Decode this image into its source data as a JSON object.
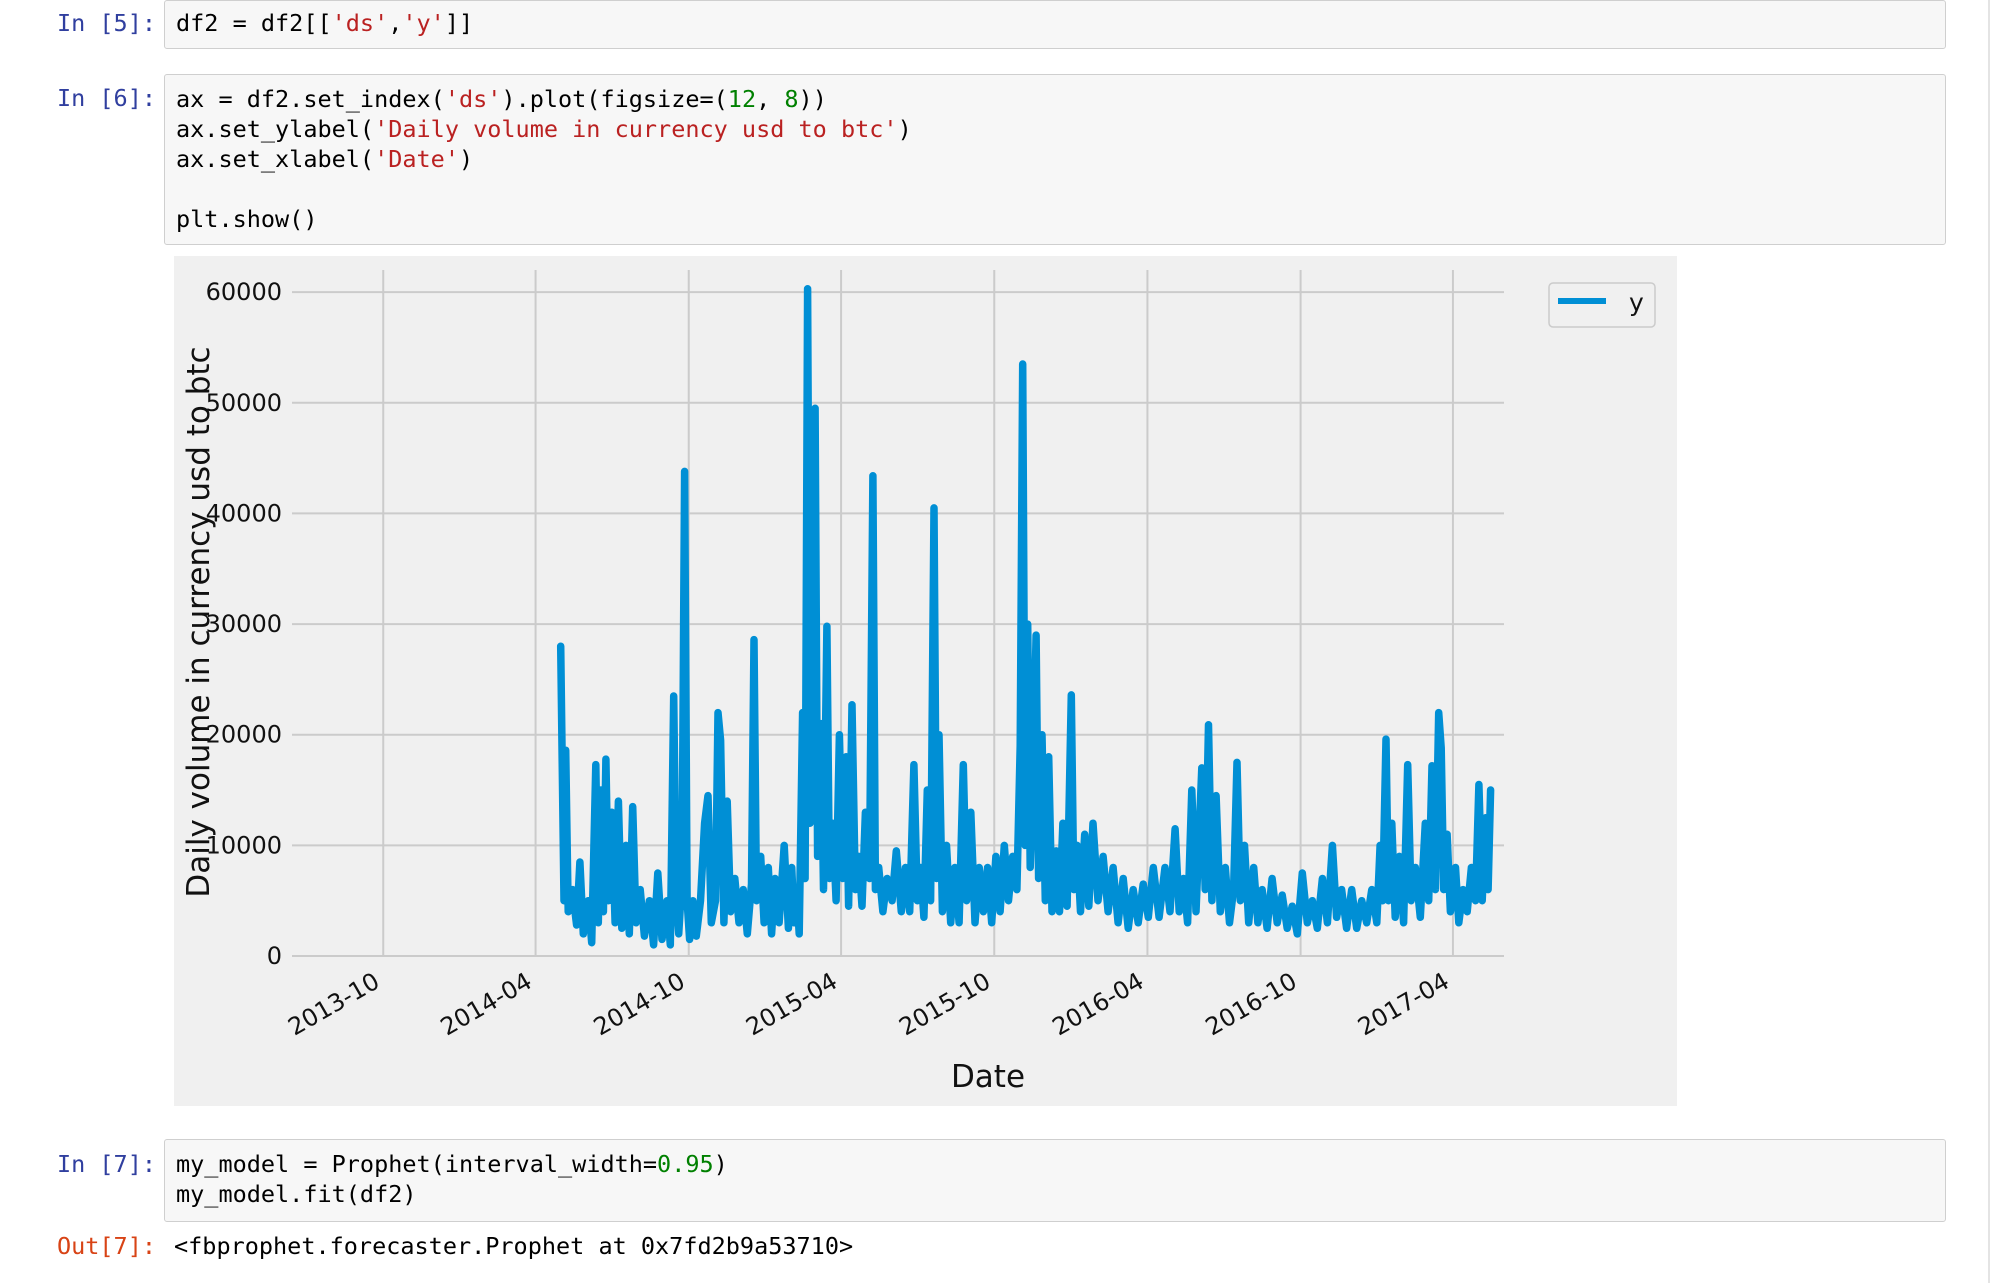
{
  "cells": [
    {
      "prompt": "In [5]:",
      "lines": [
        [
          {
            "t": "df2 = df2[["
          },
          {
            "t": "'ds'",
            "c": "s"
          },
          {
            "t": ","
          },
          {
            "t": "'y'",
            "c": "s"
          },
          {
            "t": "]]"
          }
        ]
      ]
    },
    {
      "prompt": "In [6]:",
      "lines": [
        [
          {
            "t": "ax = df2.set_index("
          },
          {
            "t": "'ds'",
            "c": "s"
          },
          {
            "t": ").plot(figsize=("
          },
          {
            "t": "12",
            "c": "n"
          },
          {
            "t": ", "
          },
          {
            "t": "8",
            "c": "n"
          },
          {
            "t": "))"
          }
        ],
        [
          {
            "t": "ax.set_ylabel("
          },
          {
            "t": "'Daily volume in currency usd to btc'",
            "c": "s"
          },
          {
            "t": ")"
          }
        ],
        [
          {
            "t": "ax.set_xlabel("
          },
          {
            "t": "'Date'",
            "c": "s"
          },
          {
            "t": ")"
          }
        ],
        [],
        [
          {
            "t": "plt.show()"
          }
        ]
      ]
    },
    {
      "prompt": "In [7]:",
      "lines": [
        [
          {
            "t": "my_model = Prophet(interval_width="
          },
          {
            "t": "0.95",
            "c": "n"
          },
          {
            "t": ")"
          }
        ],
        [
          {
            "t": "my_model.fit(df2)"
          }
        ]
      ]
    }
  ],
  "output": {
    "prompt": "Out[7]:",
    "text": "<fbprophet.forecaster.Prophet at 0x7fd2b9a53710>"
  },
  "colors": {
    "line": "#008fd5",
    "grid": "#cbcbcb",
    "plot_bg": "#f0f0f0",
    "string": "#ba2121",
    "number": "#008000",
    "in_prompt": "#303f9f",
    "out_prompt": "#d84315"
  },
  "chart_data": {
    "type": "line",
    "style": "fivethirtyeight",
    "xlabel": "Date",
    "ylabel": "Daily volume in currency usd to btc",
    "legend": [
      "y"
    ],
    "legend_position": "top-right",
    "grid": true,
    "x_ticks": [
      "2013-10",
      "2014-04",
      "2014-10",
      "2015-04",
      "2015-10",
      "2016-04",
      "2016-10",
      "2017-04"
    ],
    "y_ticks": [
      0,
      10000,
      20000,
      30000,
      40000,
      50000,
      60000
    ],
    "ylim": [
      0,
      62000
    ],
    "xlim": [
      "2013-06-14",
      "2017-06-01"
    ],
    "series": [
      {
        "name": "y",
        "points": [
          [
            "2014-05-01",
            28000
          ],
          [
            "2014-05-05",
            5000
          ],
          [
            "2014-05-07",
            18600
          ],
          [
            "2014-05-10",
            4000
          ],
          [
            "2014-05-15",
            6000
          ],
          [
            "2014-05-20",
            2800
          ],
          [
            "2014-05-24",
            8500
          ],
          [
            "2014-05-28",
            2000
          ],
          [
            "2014-06-03",
            5000
          ],
          [
            "2014-06-07",
            1200
          ],
          [
            "2014-06-12",
            17300
          ],
          [
            "2014-06-15",
            3000
          ],
          [
            "2014-06-18",
            15000
          ],
          [
            "2014-06-21",
            4000
          ],
          [
            "2014-06-24",
            17800
          ],
          [
            "2014-06-27",
            5000
          ],
          [
            "2014-07-01",
            13000
          ],
          [
            "2014-07-05",
            3000
          ],
          [
            "2014-07-09",
            14000
          ],
          [
            "2014-07-13",
            2500
          ],
          [
            "2014-07-18",
            10000
          ],
          [
            "2014-07-22",
            2000
          ],
          [
            "2014-07-26",
            13500
          ],
          [
            "2014-07-30",
            3000
          ],
          [
            "2014-08-04",
            6000
          ],
          [
            "2014-08-09",
            1800
          ],
          [
            "2014-08-15",
            5000
          ],
          [
            "2014-08-20",
            1000
          ],
          [
            "2014-08-25",
            7500
          ],
          [
            "2014-08-30",
            1500
          ],
          [
            "2014-09-05",
            5000
          ],
          [
            "2014-09-09",
            1000
          ],
          [
            "2014-09-13",
            23500
          ],
          [
            "2014-09-16",
            5000
          ],
          [
            "2014-09-19",
            2000
          ],
          [
            "2014-09-23",
            7000
          ],
          [
            "2014-09-26",
            43800
          ],
          [
            "2014-09-29",
            5000
          ],
          [
            "2014-10-02",
            1500
          ],
          [
            "2014-10-06",
            5000
          ],
          [
            "2014-10-10",
            1800
          ],
          [
            "2014-10-15",
            5000
          ],
          [
            "2014-10-20",
            12000
          ],
          [
            "2014-10-24",
            14500
          ],
          [
            "2014-10-28",
            3000
          ],
          [
            "2014-11-02",
            5000
          ],
          [
            "2014-11-05",
            22000
          ],
          [
            "2014-11-08",
            19500
          ],
          [
            "2014-11-12",
            3000
          ],
          [
            "2014-11-16",
            14000
          ],
          [
            "2014-11-20",
            4000
          ],
          [
            "2014-11-25",
            7000
          ],
          [
            "2014-11-30",
            3000
          ],
          [
            "2014-12-05",
            6000
          ],
          [
            "2014-12-10",
            2000
          ],
          [
            "2014-12-15",
            6500
          ],
          [
            "2014-12-18",
            28600
          ],
          [
            "2014-12-21",
            5000
          ],
          [
            "2014-12-26",
            9000
          ],
          [
            "2014-12-30",
            3000
          ],
          [
            "2015-01-04",
            8000
          ],
          [
            "2015-01-08",
            2000
          ],
          [
            "2015-01-12",
            7000
          ],
          [
            "2015-01-17",
            3000
          ],
          [
            "2015-01-23",
            10000
          ],
          [
            "2015-01-28",
            2500
          ],
          [
            "2015-02-01",
            8000
          ],
          [
            "2015-02-04",
            3000
          ],
          [
            "2015-02-07",
            6000
          ],
          [
            "2015-02-10",
            2000
          ],
          [
            "2015-02-14",
            22000
          ],
          [
            "2015-02-17",
            7000
          ],
          [
            "2015-02-20",
            60300
          ],
          [
            "2015-02-23",
            12000
          ],
          [
            "2015-02-26",
            21000
          ],
          [
            "2015-03-01",
            49500
          ],
          [
            "2015-03-04",
            9000
          ],
          [
            "2015-03-08",
            21000
          ],
          [
            "2015-03-11",
            6000
          ],
          [
            "2015-03-15",
            29800
          ],
          [
            "2015-03-18",
            7000
          ],
          [
            "2015-03-22",
            12000
          ],
          [
            "2015-03-26",
            5000
          ],
          [
            "2015-03-30",
            20000
          ],
          [
            "2015-04-03",
            7000
          ],
          [
            "2015-04-07",
            18000
          ],
          [
            "2015-04-10",
            4500
          ],
          [
            "2015-04-14",
            22700
          ],
          [
            "2015-04-18",
            6000
          ],
          [
            "2015-04-22",
            9000
          ],
          [
            "2015-04-26",
            4500
          ],
          [
            "2015-04-30",
            13000
          ],
          [
            "2015-05-05",
            7000
          ],
          [
            "2015-05-09",
            43400
          ],
          [
            "2015-05-12",
            6000
          ],
          [
            "2015-05-16",
            8000
          ],
          [
            "2015-05-21",
            4000
          ],
          [
            "2015-05-26",
            7000
          ],
          [
            "2015-06-01",
            5000
          ],
          [
            "2015-06-06",
            9500
          ],
          [
            "2015-06-12",
            4000
          ],
          [
            "2015-06-17",
            8000
          ],
          [
            "2015-06-22",
            4000
          ],
          [
            "2015-06-27",
            17300
          ],
          [
            "2015-07-01",
            5000
          ],
          [
            "2015-07-05",
            8000
          ],
          [
            "2015-07-09",
            3500
          ],
          [
            "2015-07-13",
            15000
          ],
          [
            "2015-07-17",
            5000
          ],
          [
            "2015-07-21",
            40500
          ],
          [
            "2015-07-24",
            7000
          ],
          [
            "2015-07-27",
            20000
          ],
          [
            "2015-07-31",
            4000
          ],
          [
            "2015-08-05",
            10000
          ],
          [
            "2015-08-10",
            3000
          ],
          [
            "2015-08-15",
            8000
          ],
          [
            "2015-08-20",
            3000
          ],
          [
            "2015-08-25",
            17300
          ],
          [
            "2015-08-29",
            5000
          ],
          [
            "2015-09-03",
            13000
          ],
          [
            "2015-09-08",
            3000
          ],
          [
            "2015-09-13",
            8000
          ],
          [
            "2015-09-18",
            4000
          ],
          [
            "2015-09-23",
            8000
          ],
          [
            "2015-09-28",
            3000
          ],
          [
            "2015-10-03",
            9000
          ],
          [
            "2015-10-08",
            4000
          ],
          [
            "2015-10-13",
            10000
          ],
          [
            "2015-10-18",
            5000
          ],
          [
            "2015-10-23",
            9000
          ],
          [
            "2015-10-28",
            6000
          ],
          [
            "2015-11-01",
            19000
          ],
          [
            "2015-11-04",
            53500
          ],
          [
            "2015-11-07",
            10000
          ],
          [
            "2015-11-10",
            30000
          ],
          [
            "2015-11-13",
            8000
          ],
          [
            "2015-11-16",
            15000
          ],
          [
            "2015-11-20",
            29000
          ],
          [
            "2015-11-23",
            7000
          ],
          [
            "2015-11-27",
            20000
          ],
          [
            "2015-12-01",
            5000
          ],
          [
            "2015-12-05",
            18000
          ],
          [
            "2015-12-09",
            4000
          ],
          [
            "2015-12-14",
            9500
          ],
          [
            "2015-12-18",
            4000
          ],
          [
            "2015-12-22",
            12000
          ],
          [
            "2015-12-27",
            4500
          ],
          [
            "2016-01-01",
            23600
          ],
          [
            "2016-01-04",
            6000
          ],
          [
            "2016-01-08",
            10000
          ],
          [
            "2016-01-12",
            4000
          ],
          [
            "2016-01-17",
            11000
          ],
          [
            "2016-01-22",
            4500
          ],
          [
            "2016-01-27",
            12000
          ],
          [
            "2016-02-02",
            5000
          ],
          [
            "2016-02-08",
            9000
          ],
          [
            "2016-02-14",
            4000
          ],
          [
            "2016-02-20",
            8000
          ],
          [
            "2016-02-26",
            3000
          ],
          [
            "2016-03-03",
            7000
          ],
          [
            "2016-03-09",
            2500
          ],
          [
            "2016-03-15",
            6000
          ],
          [
            "2016-03-21",
            3000
          ],
          [
            "2016-03-27",
            6500
          ],
          [
            "2016-04-02",
            3500
          ],
          [
            "2016-04-08",
            8000
          ],
          [
            "2016-04-15",
            3500
          ],
          [
            "2016-04-22",
            8000
          ],
          [
            "2016-04-28",
            4000
          ],
          [
            "2016-05-04",
            11500
          ],
          [
            "2016-05-09",
            4000
          ],
          [
            "2016-05-14",
            7000
          ],
          [
            "2016-05-19",
            3000
          ],
          [
            "2016-05-24",
            15000
          ],
          [
            "2016-05-29",
            4000
          ],
          [
            "2016-06-05",
            17000
          ],
          [
            "2016-06-09",
            6000
          ],
          [
            "2016-06-13",
            20900
          ],
          [
            "2016-06-17",
            5000
          ],
          [
            "2016-06-22",
            14500
          ],
          [
            "2016-06-27",
            4000
          ],
          [
            "2016-07-03",
            8000
          ],
          [
            "2016-07-08",
            3000
          ],
          [
            "2016-07-13",
            6000
          ],
          [
            "2016-07-17",
            17500
          ],
          [
            "2016-07-21",
            5000
          ],
          [
            "2016-07-26",
            10000
          ],
          [
            "2016-07-31",
            3000
          ],
          [
            "2016-08-06",
            8000
          ],
          [
            "2016-08-11",
            3000
          ],
          [
            "2016-08-16",
            6000
          ],
          [
            "2016-08-22",
            2500
          ],
          [
            "2016-08-28",
            7000
          ],
          [
            "2016-09-03",
            3000
          ],
          [
            "2016-09-09",
            5500
          ],
          [
            "2016-09-15",
            2500
          ],
          [
            "2016-09-21",
            4500
          ],
          [
            "2016-09-27",
            2000
          ],
          [
            "2016-10-03",
            7500
          ],
          [
            "2016-10-09",
            3000
          ],
          [
            "2016-10-15",
            5000
          ],
          [
            "2016-10-21",
            2500
          ],
          [
            "2016-10-27",
            7000
          ],
          [
            "2016-11-02",
            3000
          ],
          [
            "2016-11-08",
            10000
          ],
          [
            "2016-11-13",
            3500
          ],
          [
            "2016-11-19",
            6000
          ],
          [
            "2016-11-25",
            2500
          ],
          [
            "2016-12-01",
            6000
          ],
          [
            "2016-12-07",
            2500
          ],
          [
            "2016-12-13",
            5000
          ],
          [
            "2016-12-19",
            3000
          ],
          [
            "2016-12-25",
            6000
          ],
          [
            "2016-12-31",
            3000
          ],
          [
            "2017-01-04",
            10000
          ],
          [
            "2017-01-07",
            5000
          ],
          [
            "2017-01-11",
            19600
          ],
          [
            "2017-01-14",
            5000
          ],
          [
            "2017-01-18",
            12000
          ],
          [
            "2017-01-22",
            3500
          ],
          [
            "2017-01-27",
            9000
          ],
          [
            "2017-02-01",
            3000
          ],
          [
            "2017-02-06",
            17300
          ],
          [
            "2017-02-10",
            5000
          ],
          [
            "2017-02-15",
            8000
          ],
          [
            "2017-02-21",
            3500
          ],
          [
            "2017-02-27",
            12000
          ],
          [
            "2017-03-03",
            5000
          ],
          [
            "2017-03-07",
            17200
          ],
          [
            "2017-03-11",
            6000
          ],
          [
            "2017-03-15",
            22000
          ],
          [
            "2017-03-18",
            18800
          ],
          [
            "2017-03-21",
            6000
          ],
          [
            "2017-03-25",
            11000
          ],
          [
            "2017-03-29",
            4000
          ],
          [
            "2017-04-04",
            8000
          ],
          [
            "2017-04-08",
            3000
          ],
          [
            "2017-04-13",
            6000
          ],
          [
            "2017-04-18",
            4000
          ],
          [
            "2017-04-23",
            8000
          ],
          [
            "2017-04-28",
            5000
          ],
          [
            "2017-05-02",
            15500
          ],
          [
            "2017-05-06",
            5000
          ],
          [
            "2017-05-10",
            12500
          ],
          [
            "2017-05-13",
            6000
          ],
          [
            "2017-05-16",
            15000
          ]
        ]
      }
    ]
  }
}
